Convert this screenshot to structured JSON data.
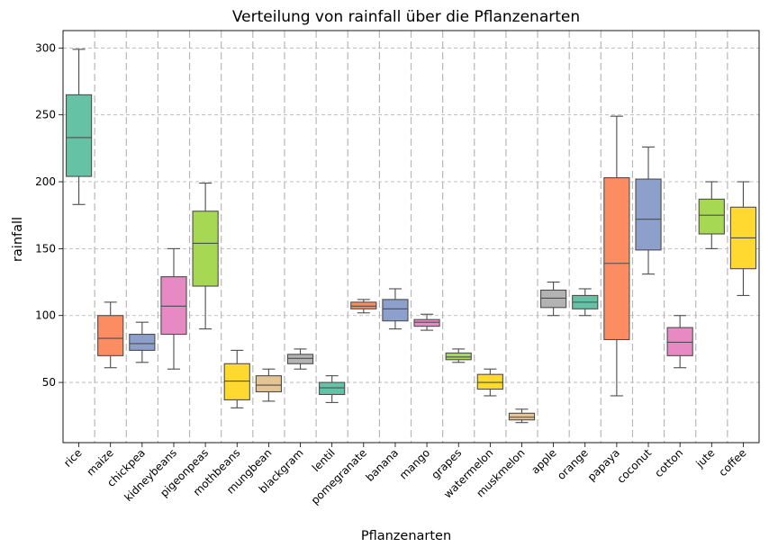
{
  "chart_data": {
    "type": "box",
    "title": "Verteilung von rainfall über die Pflanzenarten",
    "xlabel": "Pflanzenarten",
    "ylabel": "rainfall",
    "ylim": [
      5,
      313
    ],
    "yticks": [
      50,
      100,
      150,
      200,
      250,
      300
    ],
    "grid": "y-dashed plus dashed vertical separators between categories",
    "categories": [
      "rice",
      "maize",
      "chickpea",
      "kidneybeans",
      "pigeonpeas",
      "mothbeans",
      "mungbean",
      "blackgram",
      "lentil",
      "pomegranate",
      "banana",
      "mango",
      "grapes",
      "watermelon",
      "muskmelon",
      "apple",
      "orange",
      "papaya",
      "coconut",
      "cotton",
      "jute",
      "coffee"
    ],
    "boxes": [
      {
        "min": 183,
        "q1": 204,
        "median": 233,
        "q3": 265,
        "max": 299,
        "color": "#66c2a5"
      },
      {
        "min": 61,
        "q1": 70,
        "median": 83,
        "q3": 100,
        "max": 110,
        "color": "#fc8d62"
      },
      {
        "min": 65,
        "q1": 74,
        "median": 79,
        "q3": 86,
        "max": 95,
        "color": "#8da0cb"
      },
      {
        "min": 60,
        "q1": 86,
        "median": 107,
        "q3": 129,
        "max": 150,
        "color": "#e78ac3"
      },
      {
        "min": 90,
        "q1": 122,
        "median": 154,
        "q3": 178,
        "max": 199,
        "color": "#a6d854"
      },
      {
        "min": 31,
        "q1": 37,
        "median": 51,
        "q3": 64,
        "max": 74,
        "color": "#ffd92f"
      },
      {
        "min": 36,
        "q1": 43,
        "median": 48,
        "q3": 55,
        "max": 60,
        "color": "#e5c494"
      },
      {
        "min": 60,
        "q1": 64,
        "median": 68,
        "q3": 71,
        "max": 75,
        "color": "#b3b3b3"
      },
      {
        "min": 35,
        "q1": 41,
        "median": 46,
        "q3": 50,
        "max": 55,
        "color": "#66c2a5"
      },
      {
        "min": 102,
        "q1": 105,
        "median": 107,
        "q3": 110,
        "max": 112,
        "color": "#fc8d62"
      },
      {
        "min": 90,
        "q1": 96,
        "median": 105,
        "q3": 112,
        "max": 120,
        "color": "#8da0cb"
      },
      {
        "min": 89,
        "q1": 92,
        "median": 95,
        "q3": 97,
        "max": 101,
        "color": "#e78ac3"
      },
      {
        "min": 65,
        "q1": 67,
        "median": 69,
        "q3": 72,
        "max": 75,
        "color": "#a6d854"
      },
      {
        "min": 40,
        "q1": 45,
        "median": 50,
        "q3": 56,
        "max": 60,
        "color": "#ffd92f"
      },
      {
        "min": 20,
        "q1": 22,
        "median": 24,
        "q3": 27,
        "max": 30,
        "color": "#e5c494"
      },
      {
        "min": 100,
        "q1": 106,
        "median": 113,
        "q3": 119,
        "max": 125,
        "color": "#b3b3b3"
      },
      {
        "min": 100,
        "q1": 105,
        "median": 110,
        "q3": 115,
        "max": 120,
        "color": "#66c2a5"
      },
      {
        "min": 40,
        "q1": 82,
        "median": 139,
        "q3": 203,
        "max": 249,
        "color": "#fc8d62"
      },
      {
        "min": 131,
        "q1": 149,
        "median": 172,
        "q3": 202,
        "max": 226,
        "color": "#8da0cb"
      },
      {
        "min": 61,
        "q1": 70,
        "median": 80,
        "q3": 91,
        "max": 100,
        "color": "#e78ac3"
      },
      {
        "min": 150,
        "q1": 161,
        "median": 175,
        "q3": 187,
        "max": 200,
        "color": "#a6d854"
      },
      {
        "min": 115,
        "q1": 135,
        "median": 158,
        "q3": 181,
        "max": 200,
        "color": "#ffd92f"
      }
    ]
  }
}
